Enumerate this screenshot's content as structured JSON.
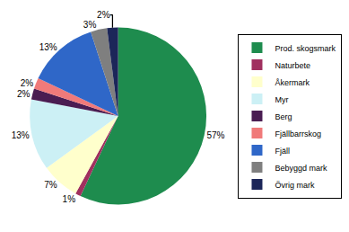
{
  "chart_data": {
    "type": "pie",
    "categories": [
      "Prod. skogsmark",
      "Naturbete",
      "Åkermark",
      "Myr",
      "Berg",
      "Fjällbarrskog",
      "Fjäll",
      "Bebyggd mark",
      "Övrig mark"
    ],
    "values": [
      57,
      1,
      7,
      13,
      2,
      2,
      13,
      3,
      2
    ],
    "value_labels": [
      "57%",
      "1%",
      "7%",
      "13%",
      "2%",
      "2%",
      "13%",
      "3%",
      "2%"
    ],
    "colors": [
      "#1e8c4e",
      "#a0305f",
      "#ffffcc",
      "#ccf0f5",
      "#4a1d52",
      "#f07a7a",
      "#2f67c8",
      "#7f7f7f",
      "#1c2659"
    ],
    "data_labels": true,
    "legend": "right"
  }
}
